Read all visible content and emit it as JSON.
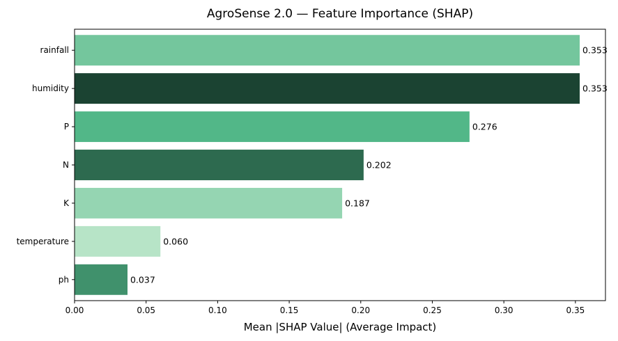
{
  "chart_data": {
    "type": "bar",
    "orientation": "horizontal",
    "title": "AgroSense 2.0 — Feature Importance (SHAP)",
    "xlabel": "Mean |SHAP Value| (Average Impact)",
    "ylabel": "",
    "xlim": [
      0,
      0.371
    ],
    "xticks": [
      "0.00",
      "0.05",
      "0.10",
      "0.15",
      "0.20",
      "0.25",
      "0.30",
      "0.35"
    ],
    "grid": false,
    "legend": "none",
    "categories": [
      "rainfall",
      "humidity",
      "P",
      "N",
      "K",
      "temperature",
      "ph"
    ],
    "values": [
      0.353,
      0.353,
      0.276,
      0.202,
      0.187,
      0.06,
      0.037
    ],
    "value_labels": [
      "0.353",
      "0.353",
      "0.276",
      "0.202",
      "0.187",
      "0.060",
      "0.037"
    ],
    "colors": [
      "#74c69d",
      "#1b4332",
      "#52b788",
      "#2d6a4f",
      "#95d5b2",
      "#b7e4c7",
      "#40916c"
    ]
  }
}
